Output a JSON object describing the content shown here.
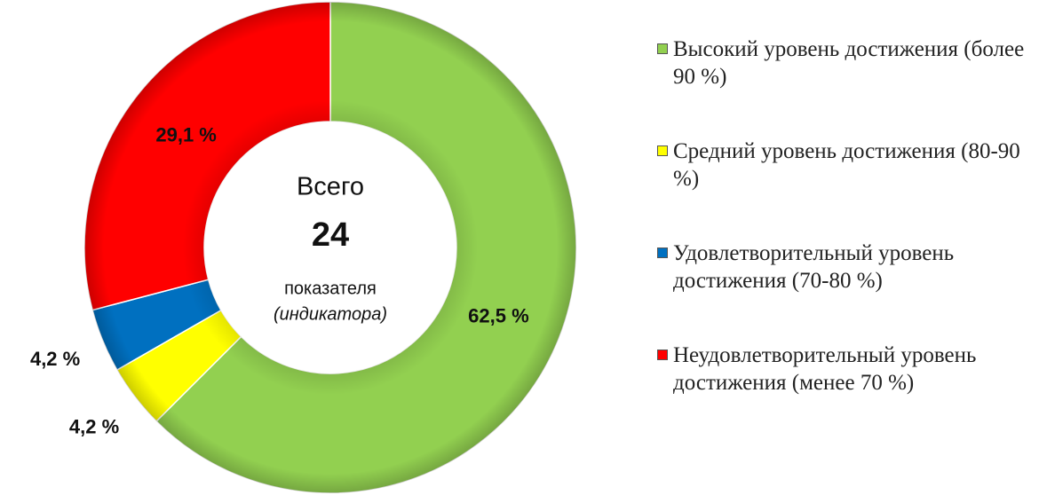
{
  "chart_data": {
    "type": "donut",
    "categories": [
      "Высокий уровень достижения (более 90 %)",
      "Средний уровень достижения (80-90 %)",
      "Удовлетворительный уровень достижения (70-80 %)",
      "Неудовлетворительный уровень достижения (менее 70 %)"
    ],
    "values": [
      62.5,
      4.2,
      4.2,
      29.1
    ],
    "value_labels": [
      "62,5 %",
      "4,2 %",
      "4,2 %",
      "29,1 %"
    ],
    "colors": [
      "#92d050",
      "#ffff00",
      "#0070c0",
      "#ff0000"
    ],
    "center_text": {
      "top": "Всего",
      "total": 24,
      "line1": "показателя",
      "line2": "(индикатора)"
    },
    "legend": "right"
  }
}
